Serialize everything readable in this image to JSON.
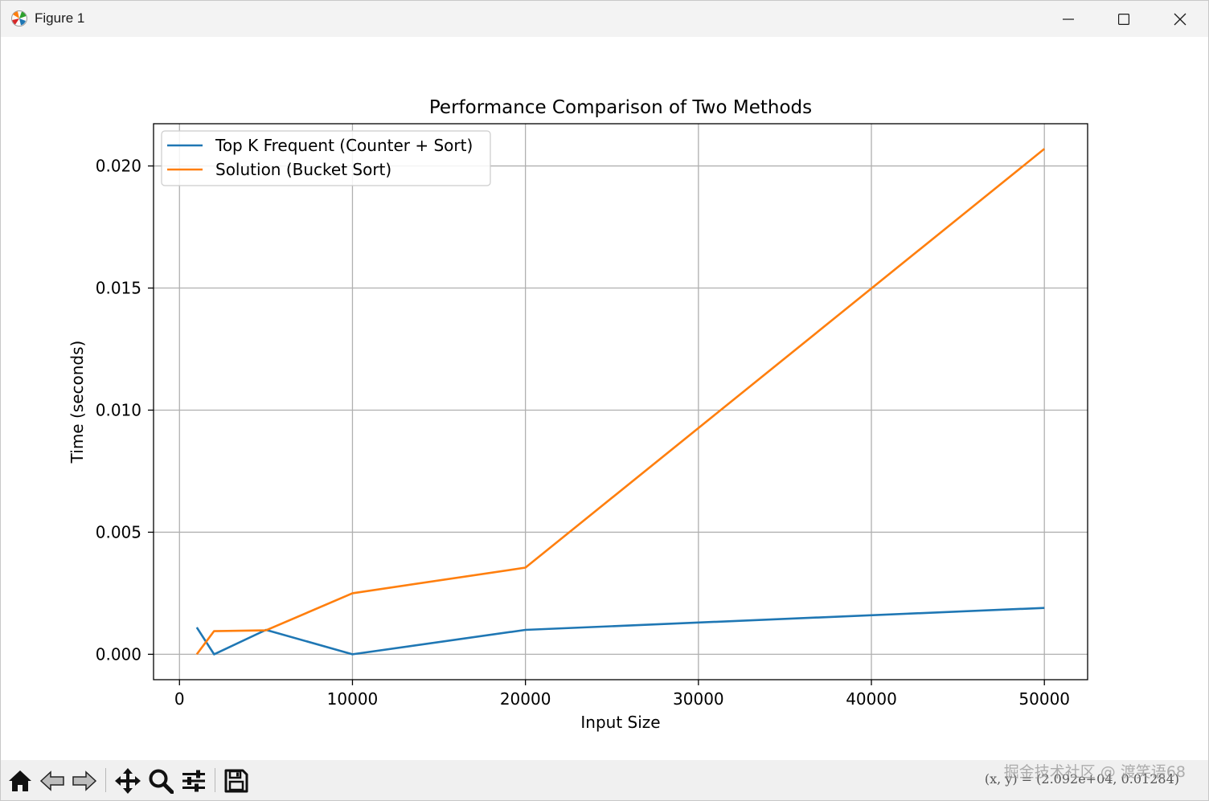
{
  "window": {
    "title": "Figure 1"
  },
  "colors": {
    "series_1": "#1f77b4",
    "series_2": "#ff7f0e",
    "grid": "#b0b0b0",
    "titlebar_bg": "#f3f3f3",
    "toolbar_bg": "#f0f0f0"
  },
  "toolbar": {
    "buttons": [
      "home-icon",
      "back-arrow-icon",
      "forward-arrow-icon",
      "pan-icon",
      "zoom-icon",
      "configure-subplots-icon",
      "save-icon"
    ],
    "coords_text": "(x, y) = (2.092e+04, 0.01284)",
    "watermark_text": "掘金技术社区 @ 渡笑语68"
  },
  "chart_data": {
    "type": "line",
    "title": "Performance Comparison of Two Methods",
    "xlabel": "Input Size",
    "ylabel": "Time (seconds)",
    "xlim": [
      -1500,
      52500
    ],
    "ylim": [
      -0.00104,
      0.02173
    ],
    "xticks": [
      0,
      10000,
      20000,
      30000,
      40000,
      50000
    ],
    "xtick_labels": [
      "0",
      "10000",
      "20000",
      "30000",
      "40000",
      "50000"
    ],
    "yticks": [
      0.0,
      0.005,
      0.01,
      0.015,
      0.02
    ],
    "ytick_labels": [
      "0.000",
      "0.005",
      "0.010",
      "0.015",
      "0.020"
    ],
    "grid": true,
    "legend_position": "upper left",
    "series": [
      {
        "name": "Top K Frequent (Counter + Sort)",
        "color": "#1f77b4",
        "x": [
          1000,
          2000,
          5000,
          10000,
          20000,
          50000
        ],
        "y": [
          0.0011,
          0.0,
          0.001,
          0.0,
          0.001,
          0.0019
        ]
      },
      {
        "name": "Solution (Bucket Sort)",
        "color": "#ff7f0e",
        "x": [
          1000,
          2000,
          5000,
          10000,
          20000,
          50000
        ],
        "y": [
          0.0,
          0.00095,
          0.00098,
          0.0025,
          0.00355,
          0.0207
        ]
      }
    ]
  }
}
